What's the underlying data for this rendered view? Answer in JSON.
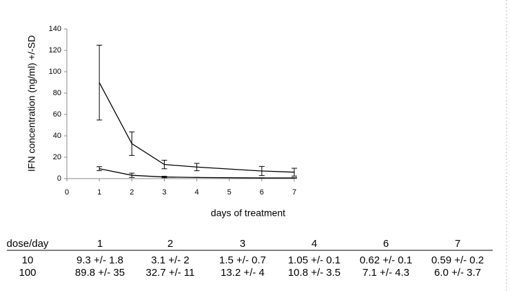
{
  "chart_data": {
    "type": "line",
    "x": [
      1,
      2,
      3,
      4,
      6,
      7
    ],
    "series": [
      {
        "color": "#000000",
        "values": [
          9.3,
          3.1,
          1.5,
          1.05,
          0.62,
          0.59
        ],
        "errors": [
          1.8,
          2,
          0.7,
          0.1,
          0.1,
          0.2
        ]
      },
      {
        "color": "#000000",
        "values": [
          89.8,
          32.7,
          13.2,
          10.8,
          7.1,
          6.0
        ],
        "errors": [
          35,
          11,
          4,
          3.5,
          4.3,
          3.7
        ]
      }
    ],
    "xlabel": "days of treatment",
    "ylabel": "IFN concentration (ng/ml) +/-SD",
    "xlim": [
      0,
      7
    ],
    "xticks": [
      0,
      1,
      2,
      3,
      4,
      5,
      6,
      7
    ],
    "ylim": [
      0,
      140
    ],
    "yticks": [
      0,
      20,
      40,
      60,
      80,
      100,
      120,
      140
    ],
    "grid": false
  },
  "table": {
    "header": [
      "dose/day",
      "1",
      "2",
      "3",
      "4",
      "6",
      "7"
    ],
    "rows": [
      [
        "10",
        "9.3 +/- 1.8",
        "3.1 +/- 2",
        "1.5 +/- 0.7",
        "1.05 +/- 0.1",
        "0.62 +/- 0.1",
        "0.59 +/- 0.2"
      ],
      [
        "100",
        "89.8 +/- 35",
        "32.7 +/- 11",
        "13.2 +/- 4",
        "10.8 +/- 3.5",
        "7.1 +/- 4.3",
        "6.0 +/- 3.7"
      ]
    ]
  }
}
